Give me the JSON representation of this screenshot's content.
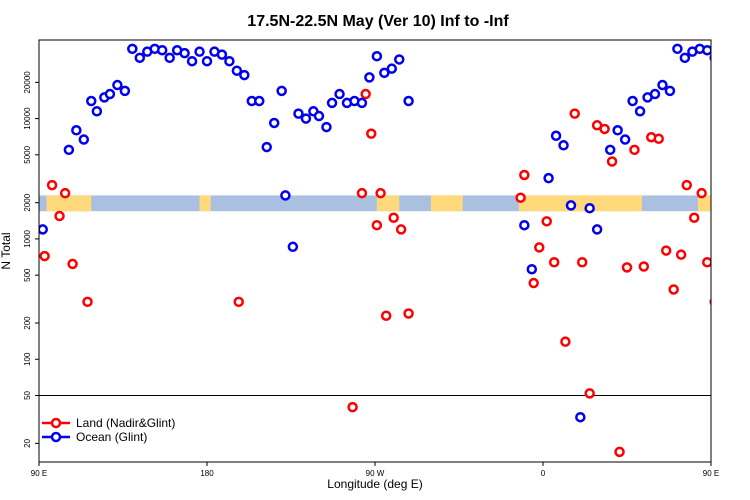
{
  "chart_data": {
    "type": "scatter",
    "title": "17.5N-22.5N May (Ver 10)   Inf to -Inf",
    "xlabel": "Longitude (deg E)",
    "ylabel": "N Total",
    "xlim": [
      90,
      450
    ],
    "ylim_log": [
      14,
      45000
    ],
    "x_ticks": [
      {
        "value": 90,
        "label": "90 E"
      },
      {
        "value": 180,
        "label": "180"
      },
      {
        "value": 270,
        "label": "90 W"
      },
      {
        "value": 360,
        "label": "0"
      },
      {
        "value": 450,
        "label": "90 E"
      }
    ],
    "y_ticks": [
      {
        "value": 20,
        "label": "20"
      },
      {
        "value": 50,
        "label": "50"
      },
      {
        "value": 100,
        "label": "100"
      },
      {
        "value": 200,
        "label": "200"
      },
      {
        "value": 500,
        "label": "500"
      },
      {
        "value": 1000,
        "label": "1000"
      },
      {
        "value": 2000,
        "label": "2000"
      },
      {
        "value": 5000,
        "label": "5000"
      },
      {
        "value": 10000,
        "label": "10000"
      },
      {
        "value": 20000,
        "label": "20000"
      }
    ],
    "reference_line": 50,
    "colors": {
      "land": "#ff0000",
      "ocean": "#0000ee",
      "sea": "#a9c0e0",
      "landmask": "#ffd97a"
    },
    "map_band": {
      "y_low": 1700,
      "y_high": 2300
    },
    "land_regions": [
      [
        94,
        118
      ],
      [
        176,
        182
      ],
      [
        271,
        283
      ],
      [
        300,
        317
      ],
      [
        347,
        413
      ],
      [
        443,
        450
      ]
    ],
    "legend": {
      "position": "bottom-left",
      "entries": [
        "Land (Nadir&Glint)",
        "Ocean (Glint)"
      ]
    },
    "series": [
      {
        "name": "Land (Nadir&Glint)",
        "points": [
          [
            93,
            720
          ],
          [
            97,
            2800
          ],
          [
            101,
            1550
          ],
          [
            104,
            2400
          ],
          [
            108,
            620
          ],
          [
            116,
            300
          ],
          [
            197,
            300
          ],
          [
            258,
            40
          ],
          [
            263,
            2400
          ],
          [
            265,
            16000
          ],
          [
            268,
            7500
          ],
          [
            271,
            1300
          ],
          [
            273,
            2400
          ],
          [
            276,
            230
          ],
          [
            280,
            1500
          ],
          [
            284,
            1200
          ],
          [
            288,
            240
          ],
          [
            348,
            2200
          ],
          [
            350,
            3400
          ],
          [
            355,
            430
          ],
          [
            358,
            850
          ],
          [
            362,
            1400
          ],
          [
            366,
            640
          ],
          [
            372,
            140
          ],
          [
            377,
            11000
          ],
          [
            381,
            640
          ],
          [
            385,
            52
          ],
          [
            389,
            8800
          ],
          [
            393,
            8200
          ],
          [
            397,
            4400
          ],
          [
            401,
            17
          ],
          [
            405,
            580
          ],
          [
            409,
            5500
          ],
          [
            414,
            590
          ],
          [
            418,
            7000
          ],
          [
            422,
            6800
          ],
          [
            426,
            800
          ],
          [
            430,
            380
          ],
          [
            434,
            740
          ],
          [
            437,
            2800
          ],
          [
            441,
            1500
          ],
          [
            445,
            2400
          ],
          [
            448,
            640
          ],
          [
            452,
            300
          ]
        ]
      },
      {
        "name": "Ocean (Glint)",
        "points": [
          [
            92,
            1200
          ],
          [
            106,
            5500
          ],
          [
            110,
            8000
          ],
          [
            114,
            6700
          ],
          [
            118,
            14000
          ],
          [
            121,
            11500
          ],
          [
            125,
            15000
          ],
          [
            128,
            16000
          ],
          [
            132,
            19000
          ],
          [
            136,
            17000
          ],
          [
            140,
            38000
          ],
          [
            144,
            32000
          ],
          [
            148,
            36000
          ],
          [
            152,
            38000
          ],
          [
            156,
            37000
          ],
          [
            160,
            32000
          ],
          [
            164,
            37000
          ],
          [
            168,
            35000
          ],
          [
            172,
            30000
          ],
          [
            176,
            36000
          ],
          [
            180,
            30000
          ],
          [
            184,
            36000
          ],
          [
            188,
            34000
          ],
          [
            192,
            30000
          ],
          [
            196,
            25000
          ],
          [
            200,
            23000
          ],
          [
            204,
            14000
          ],
          [
            208,
            14000
          ],
          [
            212,
            5800
          ],
          [
            216,
            9200
          ],
          [
            220,
            17000
          ],
          [
            222,
            2300
          ],
          [
            226,
            860
          ],
          [
            229,
            11000
          ],
          [
            233,
            10000
          ],
          [
            237,
            11500
          ],
          [
            240,
            10500
          ],
          [
            244,
            8500
          ],
          [
            247,
            13500
          ],
          [
            251,
            16000
          ],
          [
            255,
            13500
          ],
          [
            259,
            14000
          ],
          [
            263,
            13500
          ],
          [
            267,
            22000
          ],
          [
            271,
            33000
          ],
          [
            275,
            24000
          ],
          [
            279,
            26000
          ],
          [
            283,
            31000
          ],
          [
            288,
            14000
          ],
          [
            350,
            1300
          ],
          [
            354,
            560
          ],
          [
            363,
            3200
          ],
          [
            367,
            7200
          ],
          [
            371,
            6000
          ],
          [
            375,
            1900
          ],
          [
            380,
            33
          ],
          [
            385,
            1800
          ],
          [
            389,
            1200
          ],
          [
            396,
            5500
          ],
          [
            400,
            8000
          ],
          [
            404,
            6700
          ],
          [
            408,
            14000
          ],
          [
            412,
            11500
          ],
          [
            416,
            15000
          ],
          [
            420,
            16000
          ],
          [
            424,
            19000
          ],
          [
            428,
            17000
          ],
          [
            432,
            38000
          ],
          [
            436,
            32000
          ],
          [
            440,
            36000
          ],
          [
            444,
            38000
          ],
          [
            448,
            37000
          ],
          [
            452,
            32000
          ]
        ]
      }
    ]
  }
}
